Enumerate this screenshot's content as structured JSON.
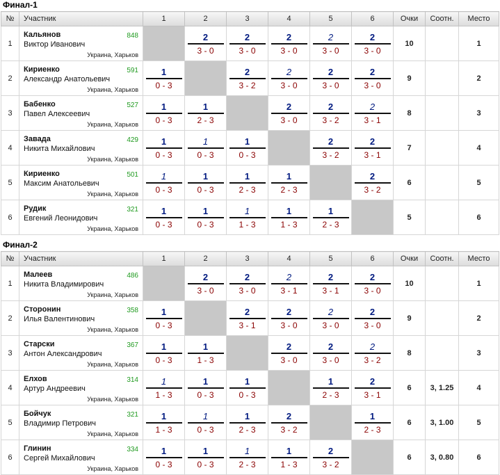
{
  "headers": {
    "num": "№",
    "player": "Участник",
    "rounds": [
      "1",
      "2",
      "3",
      "4",
      "5",
      "6"
    ],
    "points": "Очки",
    "ratio": "Соотн.",
    "place": "Место"
  },
  "groups": [
    {
      "title": "Финал-1",
      "rows": [
        {
          "num": "1",
          "last": "Кальянов",
          "first": "Виктор Иванович",
          "rating": "848",
          "city": "Украина, Харьков",
          "games": [
            null,
            {
              "pts": "2",
              "score": "3 - 0",
              "it": false
            },
            {
              "pts": "2",
              "score": "3 - 0",
              "it": false
            },
            {
              "pts": "2",
              "score": "3 - 0",
              "it": false
            },
            {
              "pts": "2",
              "score": "3 - 0",
              "it": true
            },
            {
              "pts": "2",
              "score": "3 - 0",
              "it": false
            }
          ],
          "points": "10",
          "ratio": "",
          "place": "1"
        },
        {
          "num": "2",
          "last": "Кириенко",
          "first": "Александр Анатольевич",
          "rating": "591",
          "city": "Украина, Харьков",
          "games": [
            {
              "pts": "1",
              "score": "0 - 3",
              "it": false
            },
            null,
            {
              "pts": "2",
              "score": "3 - 2",
              "it": false
            },
            {
              "pts": "2",
              "score": "3 - 0",
              "it": true
            },
            {
              "pts": "2",
              "score": "3 - 0",
              "it": false
            },
            {
              "pts": "2",
              "score": "3 - 0",
              "it": false
            }
          ],
          "points": "9",
          "ratio": "",
          "place": "2"
        },
        {
          "num": "3",
          "last": "Бабенко",
          "first": "Павел Алексеевич",
          "rating": "527",
          "city": "Украина, Харьков",
          "games": [
            {
              "pts": "1",
              "score": "0 - 3",
              "it": false
            },
            {
              "pts": "1",
              "score": "2 - 3",
              "it": false
            },
            null,
            {
              "pts": "2",
              "score": "3 - 0",
              "it": false
            },
            {
              "pts": "2",
              "score": "3 - 2",
              "it": false
            },
            {
              "pts": "2",
              "score": "3 - 1",
              "it": true
            }
          ],
          "points": "8",
          "ratio": "",
          "place": "3"
        },
        {
          "num": "4",
          "last": "Завада",
          "first": "Никита Михайлович",
          "rating": "429",
          "city": "Украина, Харьков",
          "games": [
            {
              "pts": "1",
              "score": "0 - 3",
              "it": false
            },
            {
              "pts": "1",
              "score": "0 - 3",
              "it": true
            },
            {
              "pts": "1",
              "score": "0 - 3",
              "it": false
            },
            null,
            {
              "pts": "2",
              "score": "3 - 2",
              "it": false
            },
            {
              "pts": "2",
              "score": "3 - 1",
              "it": false
            }
          ],
          "points": "7",
          "ratio": "",
          "place": "4"
        },
        {
          "num": "5",
          "last": "Кириенко",
          "first": "Максим Анатольевич",
          "rating": "501",
          "city": "Украина, Харьков",
          "games": [
            {
              "pts": "1",
              "score": "0 - 3",
              "it": true
            },
            {
              "pts": "1",
              "score": "0 - 3",
              "it": false
            },
            {
              "pts": "1",
              "score": "2 - 3",
              "it": false
            },
            {
              "pts": "1",
              "score": "2 - 3",
              "it": false
            },
            null,
            {
              "pts": "2",
              "score": "3 - 2",
              "it": false
            }
          ],
          "points": "6",
          "ratio": "",
          "place": "5"
        },
        {
          "num": "6",
          "last": "Рудик",
          "first": "Евгений Леонидович",
          "rating": "321",
          "city": "Украина, Харьков",
          "games": [
            {
              "pts": "1",
              "score": "0 - 3",
              "it": false
            },
            {
              "pts": "1",
              "score": "0 - 3",
              "it": false
            },
            {
              "pts": "1",
              "score": "1 - 3",
              "it": true
            },
            {
              "pts": "1",
              "score": "1 - 3",
              "it": false
            },
            {
              "pts": "1",
              "score": "2 - 3",
              "it": false
            },
            null
          ],
          "points": "5",
          "ratio": "",
          "place": "6"
        }
      ]
    },
    {
      "title": "Финал-2",
      "rows": [
        {
          "num": "1",
          "last": "Малеев",
          "first": "Никита Владимирович",
          "rating": "486",
          "city": "Украина, Харьков",
          "games": [
            null,
            {
              "pts": "2",
              "score": "3 - 0",
              "it": false
            },
            {
              "pts": "2",
              "score": "3 - 0",
              "it": false
            },
            {
              "pts": "2",
              "score": "3 - 1",
              "it": true
            },
            {
              "pts": "2",
              "score": "3 - 1",
              "it": false
            },
            {
              "pts": "2",
              "score": "3 - 0",
              "it": false
            }
          ],
          "points": "10",
          "ratio": "",
          "place": "1"
        },
        {
          "num": "2",
          "last": "Сторонин",
          "first": "Илья Валентинович",
          "rating": "358",
          "city": "Украина, Харьков",
          "games": [
            {
              "pts": "1",
              "score": "0 - 3",
              "it": false
            },
            null,
            {
              "pts": "2",
              "score": "3 - 1",
              "it": false
            },
            {
              "pts": "2",
              "score": "3 - 0",
              "it": false
            },
            {
              "pts": "2",
              "score": "3 - 0",
              "it": true
            },
            {
              "pts": "2",
              "score": "3 - 0",
              "it": false
            }
          ],
          "points": "9",
          "ratio": "",
          "place": "2"
        },
        {
          "num": "3",
          "last": "Старски",
          "first": "Антон Александрович",
          "rating": "367",
          "city": "Украина, Харьков",
          "games": [
            {
              "pts": "1",
              "score": "0 - 3",
              "it": false
            },
            {
              "pts": "1",
              "score": "1 - 3",
              "it": false
            },
            null,
            {
              "pts": "2",
              "score": "3 - 0",
              "it": false
            },
            {
              "pts": "2",
              "score": "3 - 0",
              "it": false
            },
            {
              "pts": "2",
              "score": "3 - 2",
              "it": true
            }
          ],
          "points": "8",
          "ratio": "",
          "place": "3"
        },
        {
          "num": "4",
          "last": "Елхов",
          "first": "Артур Андреевич",
          "rating": "314",
          "city": "Украина, Харьков",
          "games": [
            {
              "pts": "1",
              "score": "1 - 3",
              "it": true
            },
            {
              "pts": "1",
              "score": "0 - 3",
              "it": false
            },
            {
              "pts": "1",
              "score": "0 - 3",
              "it": false
            },
            null,
            {
              "pts": "1",
              "score": "2 - 3",
              "it": false
            },
            {
              "pts": "2",
              "score": "3 - 1",
              "it": false
            }
          ],
          "points": "6",
          "ratio": "3, 1.25",
          "place": "4"
        },
        {
          "num": "5",
          "last": "Бойчук",
          "first": "Владимир Петрович",
          "rating": "321",
          "city": "Украина, Харьков",
          "games": [
            {
              "pts": "1",
              "score": "1 - 3",
              "it": false
            },
            {
              "pts": "1",
              "score": "0 - 3",
              "it": true
            },
            {
              "pts": "1",
              "score": "2 - 3",
              "it": false
            },
            {
              "pts": "2",
              "score": "3 - 2",
              "it": false
            },
            null,
            {
              "pts": "1",
              "score": "2 - 3",
              "it": false
            }
          ],
          "points": "6",
          "ratio": "3, 1.00",
          "place": "5"
        },
        {
          "num": "6",
          "last": "Глинин",
          "first": "Сергей Михайлович",
          "rating": "334",
          "city": "Украина, Харьков",
          "games": [
            {
              "pts": "1",
              "score": "0 - 3",
              "it": false
            },
            {
              "pts": "1",
              "score": "0 - 3",
              "it": false
            },
            {
              "pts": "1",
              "score": "2 - 3",
              "it": true
            },
            {
              "pts": "1",
              "score": "1 - 3",
              "it": false
            },
            {
              "pts": "2",
              "score": "3 - 2",
              "it": false
            },
            null
          ],
          "points": "6",
          "ratio": "3, 0.80",
          "place": "6"
        }
      ]
    }
  ]
}
